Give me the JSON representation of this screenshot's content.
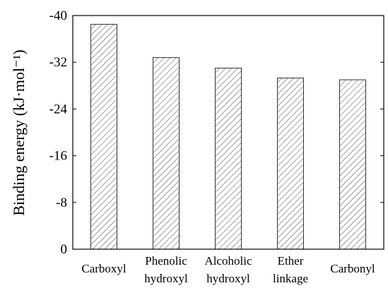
{
  "chart_data": {
    "type": "bar",
    "y_label": "Binding energy (kJ·mol⁻¹)",
    "categories": [
      "Carboxyl",
      "Phenolic hydroxyl",
      "Alcoholic hydroxyl",
      "Ether linkage",
      "Carbonyl"
    ],
    "values": [
      -38.5,
      -32.8,
      -31.0,
      -29.3,
      -29.0
    ],
    "color": "#333333",
    "ylim": [
      0,
      -40
    ],
    "yticks": [
      0,
      -8,
      -16,
      -24,
      -32,
      -40
    ],
    "grid": false
  }
}
